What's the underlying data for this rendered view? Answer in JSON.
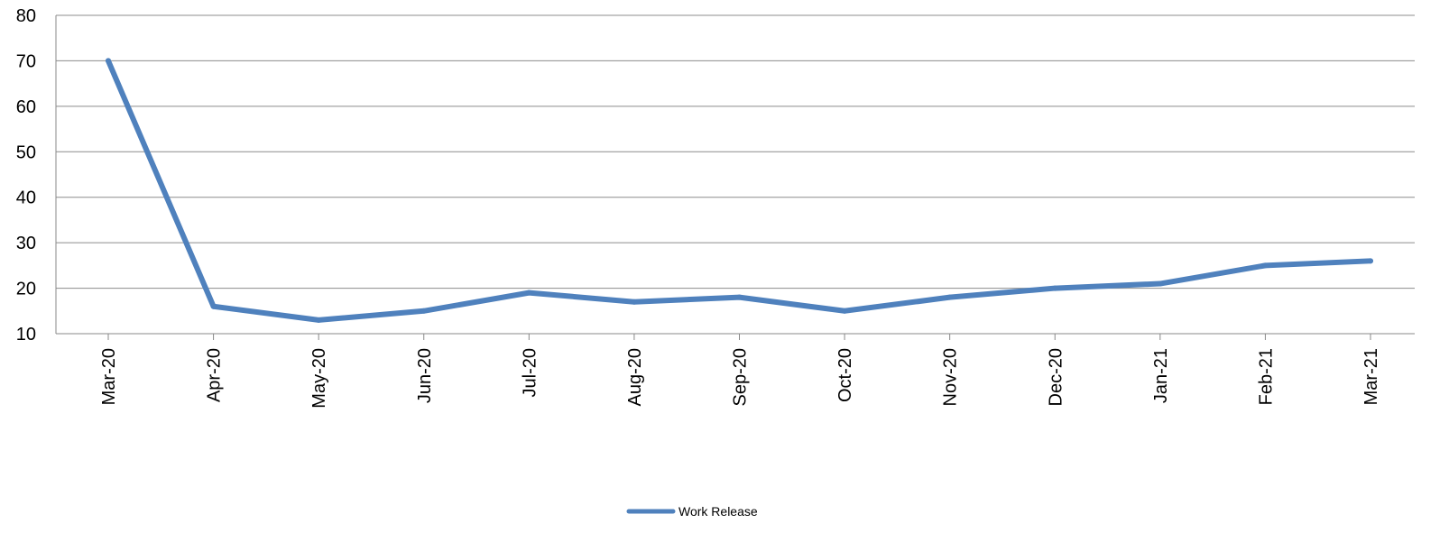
{
  "chart_data": {
    "type": "line",
    "title": "",
    "xlabel": "",
    "ylabel": "",
    "categories": [
      "Mar-20",
      "Apr-20",
      "May-20",
      "Jun-20",
      "Jul-20",
      "Aug-20",
      "Sep-20",
      "Oct-20",
      "Nov-20",
      "Dec-20",
      "Jan-21",
      "Feb-21",
      "Mar-21"
    ],
    "ylim": [
      10,
      80
    ],
    "yticks": [
      "10",
      "20",
      "30",
      "40",
      "50",
      "60",
      "70",
      "80"
    ],
    "grid": true,
    "legend_position": "bottom",
    "series": [
      {
        "name": "Work Release",
        "color": "#4F81BD",
        "values": [
          70,
          16,
          13,
          15,
          19,
          17,
          18,
          15,
          18,
          20,
          21,
          25,
          26
        ]
      }
    ]
  }
}
